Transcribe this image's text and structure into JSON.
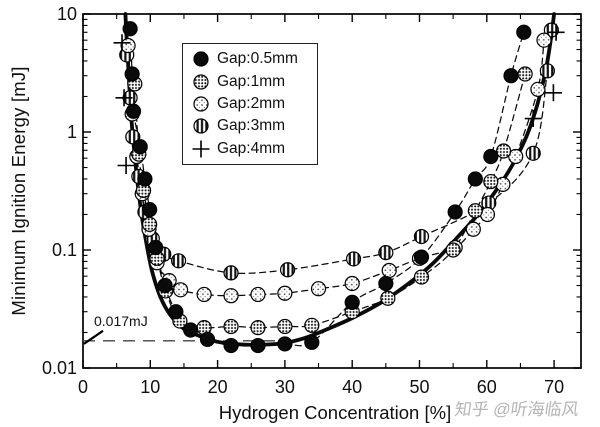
{
  "figure": {
    "x_axis": {
      "label": "Hydrogen Concentration [%]",
      "min": 0,
      "max": 74,
      "major_ticks": [
        0,
        10,
        20,
        30,
        40,
        50,
        60,
        70
      ],
      "minor_ticks": [
        5,
        15,
        25,
        35,
        45,
        55,
        65
      ]
    },
    "y_axis": {
      "label": "Minimum Ignition Energy [mJ]",
      "scale": "log",
      "min": 0.01,
      "max": 10,
      "major_ticks": [
        {
          "value": 10,
          "label": "10"
        },
        {
          "value": 1,
          "label": "1"
        },
        {
          "value": 0.1,
          "label": "0.1"
        },
        {
          "value": 0.01,
          "label": "0.01"
        }
      ]
    },
    "annotation": {
      "label": "0.017mJ",
      "value_mJ": 0.017,
      "dash_line_x_start": 0,
      "dash_line_x_end": 29
    },
    "legend": {
      "items": [
        {
          "label": "Gap:0.5mm",
          "marker": "filled-circle"
        },
        {
          "label": "Gap:1mm",
          "marker": "dense-dots"
        },
        {
          "label": "Gap:2mm",
          "marker": "sparse-dots"
        },
        {
          "label": "Gap:3mm",
          "marker": "vertical-stripes"
        },
        {
          "label": "Gap:4mm",
          "marker": "plus"
        }
      ]
    },
    "watermark": "知乎 @听海临风"
  },
  "chart_data": {
    "type": "line",
    "title": "",
    "xlabel": "Hydrogen Concentration [%]",
    "ylabel": "Minimum Ignition Energy [mJ]",
    "x_range": [
      0,
      74
    ],
    "y_range": [
      0.01,
      10
    ],
    "y_scale": "log",
    "grid": false,
    "legend_position": "upper-left-inside",
    "series": [
      {
        "name": "Envelope curve",
        "marker": "none",
        "line": "solid",
        "line_width": 3.8,
        "points": [
          [
            6.3,
            10
          ],
          [
            6.5,
            6.0
          ],
          [
            6.8,
            3.0
          ],
          [
            7.1,
            1.5
          ],
          [
            7.5,
            0.8
          ],
          [
            8.0,
            0.42
          ],
          [
            8.6,
            0.22
          ],
          [
            9.4,
            0.115
          ],
          [
            10.3,
            0.065
          ],
          [
            11.5,
            0.04
          ],
          [
            13,
            0.028
          ],
          [
            15,
            0.0215
          ],
          [
            17,
            0.019
          ],
          [
            19,
            0.0172
          ],
          [
            21,
            0.0163
          ],
          [
            24,
            0.0158
          ],
          [
            27,
            0.0158
          ],
          [
            30,
            0.0163
          ],
          [
            33,
            0.018
          ],
          [
            36,
            0.021
          ],
          [
            40,
            0.0265
          ],
          [
            44,
            0.035
          ],
          [
            48,
            0.05
          ],
          [
            52,
            0.077
          ],
          [
            56,
            0.135
          ],
          [
            59,
            0.21
          ],
          [
            62,
            0.36
          ],
          [
            64,
            0.55
          ],
          [
            66,
            0.95
          ],
          [
            67.5,
            1.7
          ],
          [
            68.7,
            3.2
          ],
          [
            69.5,
            6.0
          ],
          [
            70,
            10
          ]
        ]
      },
      {
        "name": "Gap:3mm",
        "marker": "vertical-stripes",
        "line": "dashed",
        "line_width": 1.25,
        "points": [
          [
            6.5,
            4.5
          ],
          [
            7.0,
            1.95
          ],
          [
            7.4,
            0.91
          ],
          [
            8.3,
            0.42
          ],
          [
            9.2,
            0.21
          ],
          [
            10.3,
            0.125
          ],
          [
            12,
            0.092
          ],
          [
            14.2,
            0.081
          ],
          [
            22,
            0.064
          ],
          [
            30.4,
            0.068
          ],
          [
            40.2,
            0.084
          ],
          [
            45,
            0.095
          ],
          [
            50.3,
            0.13
          ],
          [
            60.3,
            0.25
          ],
          [
            66.9,
            0.66
          ],
          [
            69,
            3.3
          ],
          [
            69.6,
            7.3
          ]
        ]
      },
      {
        "name": "Gap:2mm",
        "marker": "sparse-dots",
        "line": "dashed",
        "line_width": 1.25,
        "points": [
          [
            6.7,
            5.4
          ],
          [
            7.3,
            1.42
          ],
          [
            8.0,
            0.62
          ],
          [
            8.8,
            0.3
          ],
          [
            9.8,
            0.15
          ],
          [
            11,
            0.078
          ],
          [
            12.8,
            0.055
          ],
          [
            14.5,
            0.046
          ],
          [
            18,
            0.042
          ],
          [
            22,
            0.041
          ],
          [
            26,
            0.042
          ],
          [
            30,
            0.043
          ],
          [
            35,
            0.047
          ],
          [
            40,
            0.052
          ],
          [
            45.5,
            0.067
          ],
          [
            50,
            0.085
          ],
          [
            55.3,
            0.105
          ],
          [
            58,
            0.15
          ],
          [
            60.1,
            0.2
          ],
          [
            62.4,
            0.36
          ],
          [
            64.3,
            0.62
          ],
          [
            67.6,
            2.3
          ],
          [
            68.5,
            6.0
          ]
        ]
      },
      {
        "name": "Gap:1mm",
        "marker": "dense-dots",
        "line": "dashed",
        "line_width": 1.25,
        "points": [
          [
            7.7,
            2.56
          ],
          [
            8.3,
            0.65
          ],
          [
            9.0,
            0.32
          ],
          [
            9.9,
            0.165
          ],
          [
            11,
            0.085
          ],
          [
            12.3,
            0.045
          ],
          [
            14.4,
            0.025
          ],
          [
            18,
            0.022
          ],
          [
            22,
            0.0225
          ],
          [
            26,
            0.022
          ],
          [
            30,
            0.0225
          ],
          [
            34,
            0.023
          ],
          [
            40,
            0.03
          ],
          [
            45.3,
            0.039
          ],
          [
            50.3,
            0.059
          ],
          [
            55,
            0.1
          ],
          [
            58.3,
            0.215
          ],
          [
            60.6,
            0.38
          ],
          [
            62.5,
            0.69
          ],
          [
            65.7,
            3.1
          ]
        ]
      },
      {
        "name": "Gap:0.5mm",
        "marker": "filled-circle",
        "line": "dashed",
        "line_width": 1.25,
        "points": [
          [
            7.0,
            7.5
          ],
          [
            7.3,
            3.1
          ],
          [
            7.5,
            1.5
          ],
          [
            8.5,
            0.75
          ],
          [
            9.2,
            0.4
          ],
          [
            9.9,
            0.22
          ],
          [
            10.8,
            0.105
          ],
          [
            12.2,
            0.05
          ],
          [
            13.8,
            0.03
          ],
          [
            16,
            0.021
          ],
          [
            18.5,
            0.0175
          ],
          [
            22,
            0.0155
          ],
          [
            26,
            0.0155
          ],
          [
            30,
            0.016
          ],
          [
            34,
            0.0165
          ],
          [
            40,
            0.036
          ],
          [
            45,
            0.052
          ],
          [
            50.3,
            0.087
          ],
          [
            55.3,
            0.21
          ],
          [
            58.3,
            0.4
          ],
          [
            60.6,
            0.62
          ],
          [
            63.6,
            3.0
          ],
          [
            65.5,
            7.0
          ]
        ]
      },
      {
        "name": "Gap:4mm",
        "marker": "plus",
        "line": "none",
        "line_width": 0,
        "points": [
          [
            5.8,
            5.7
          ],
          [
            6.1,
            1.95
          ],
          [
            6.4,
            0.52
          ],
          [
            66.9,
            1.3
          ],
          [
            69.9,
            2.15
          ],
          [
            70.3,
            7.0
          ]
        ]
      }
    ]
  }
}
